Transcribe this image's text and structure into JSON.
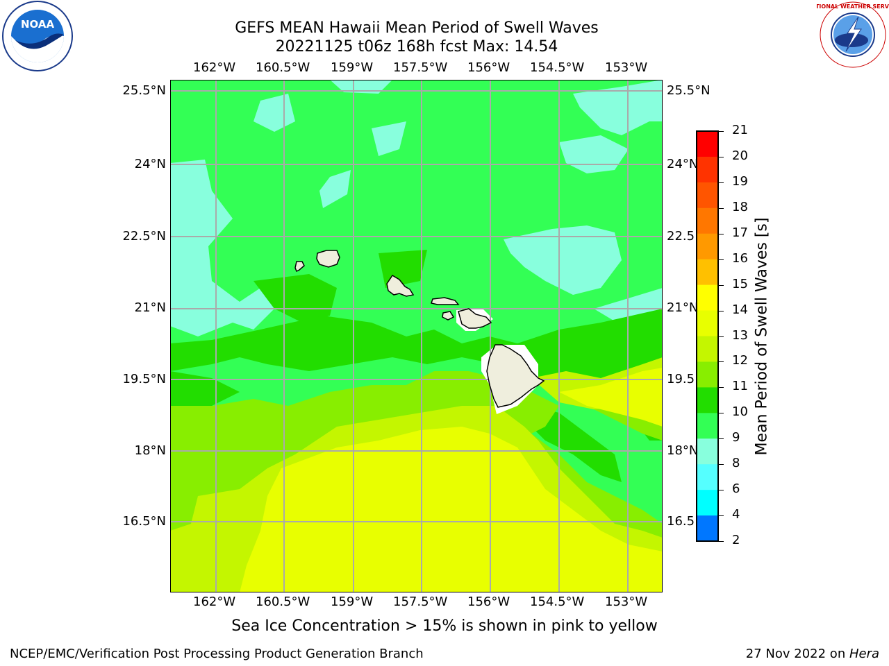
{
  "title": {
    "line1": "GEFS MEAN Hawaii Mean Period of Swell Waves",
    "line2": "20221125 t06z 168h fcst   Max: 14.54"
  },
  "axes": {
    "lon_labels": [
      "162°W",
      "160.5°W",
      "159°W",
      "157.5°W",
      "156°W",
      "154.5°W",
      "153°W"
    ],
    "lat_labels": [
      "25.5°N",
      "24°N",
      "22.5°N",
      "21°N",
      "19.5°N",
      "18°N",
      "16.5°N"
    ],
    "lat_labels_right": [
      "25.5°N",
      "24°N",
      "22.5",
      "21°N",
      "19.5",
      "18°N",
      "16.5"
    ]
  },
  "colorbar": {
    "label": "Mean Period of Swell Waves [s]",
    "ticks": [
      "21",
      "20",
      "19",
      "18",
      "17",
      "16",
      "15",
      "14",
      "13",
      "12",
      "11",
      "10",
      "9",
      "8",
      "6",
      "4",
      "2"
    ],
    "colors": [
      "#ff0000",
      "#ff3300",
      "#ff5500",
      "#ff7700",
      "#ff9900",
      "#ffc000",
      "#ffff00",
      "#e8ff00",
      "#c4f600",
      "#88ee00",
      "#22dd00",
      "#33ff55",
      "#88ffdd",
      "#55ffff",
      "#00ffff",
      "#0077ff",
      "#0000ff"
    ]
  },
  "map": {
    "ocean_color": "#33ff55",
    "land_color": "#efeedd",
    "islands": [
      "Kauai",
      "Oahu",
      "Molokai",
      "Lanai",
      "Maui",
      "Hawaii"
    ]
  },
  "caption": "Sea Ice Concentration > 15% is shown in pink to yellow",
  "credit_left": "NCEP/EMC/Verification Post Processing Product Generation Branch",
  "credit_right_prefix": "27 Nov 2022 on ",
  "credit_right_host": "Hera",
  "logos": {
    "noaa": "NOAA",
    "nws": "NATIONAL WEATHER SERVICE"
  }
}
